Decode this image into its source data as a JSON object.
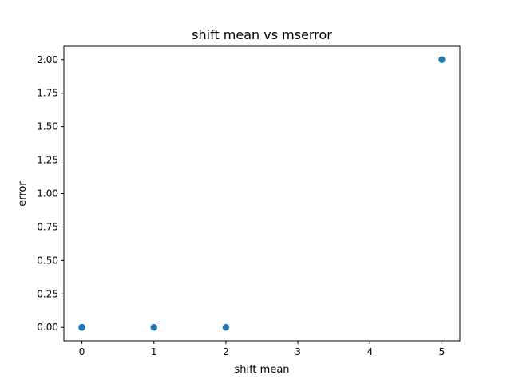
{
  "chart_data": {
    "type": "scatter",
    "title": "shift mean vs mserror",
    "xlabel": "shift mean",
    "ylabel": "error",
    "xlim": [
      -0.25,
      5.25
    ],
    "ylim": [
      -0.1,
      2.1
    ],
    "xticks": [
      0,
      1,
      2,
      3,
      4,
      5
    ],
    "xtick_labels": [
      "0",
      "1",
      "2",
      "3",
      "4",
      "5"
    ],
    "yticks": [
      0.0,
      0.25,
      0.5,
      0.75,
      1.0,
      1.25,
      1.5,
      1.75,
      2.0
    ],
    "ytick_labels": [
      "0.00",
      "0.25",
      "0.50",
      "0.75",
      "1.00",
      "1.25",
      "1.50",
      "1.75",
      "2.00"
    ],
    "grid": false,
    "legend": "none",
    "series": [
      {
        "color": "#1f77b4",
        "points": [
          {
            "x": 0,
            "y": 0
          },
          {
            "x": 0,
            "y": 0
          },
          {
            "x": 0,
            "y": 0
          },
          {
            "x": 1,
            "y": 0
          },
          {
            "x": 2,
            "y": 0
          },
          {
            "x": 5,
            "y": 2
          }
        ]
      }
    ]
  }
}
